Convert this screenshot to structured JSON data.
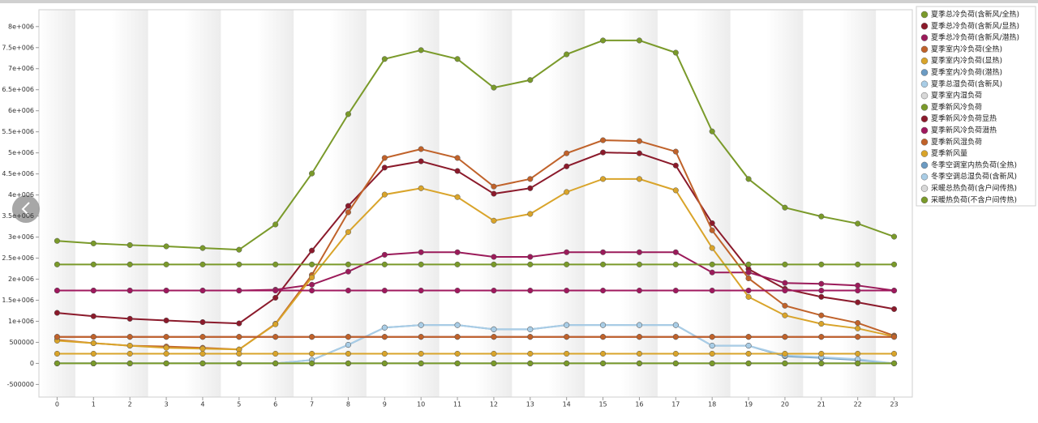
{
  "chart_data": {
    "type": "line",
    "x": [
      0,
      1,
      2,
      3,
      4,
      5,
      6,
      7,
      8,
      9,
      10,
      11,
      12,
      13,
      14,
      15,
      16,
      17,
      18,
      19,
      20,
      21,
      22,
      23
    ],
    "xlim": [
      -0.5,
      23.5
    ],
    "xticks": [
      0,
      1,
      2,
      3,
      4,
      5,
      6,
      7,
      8,
      9,
      10,
      11,
      12,
      13,
      14,
      15,
      16,
      17,
      18,
      19,
      20,
      21,
      22,
      23
    ],
    "ylim": [
      -800000,
      8400000
    ],
    "yticks": [
      -500000,
      0,
      500000,
      {
        "value": 1000000,
        "label": "1e+006"
      },
      {
        "value": 1500000,
        "label": "1.5e+006"
      },
      {
        "value": 2000000,
        "label": "2e+006"
      },
      {
        "value": 2500000,
        "label": "2.5e+006"
      },
      {
        "value": 3000000,
        "label": "3e+006"
      },
      {
        "value": 3500000,
        "label": "3.5e+006"
      },
      {
        "value": 4000000,
        "label": "4e+006"
      },
      {
        "value": 4500000,
        "label": "4.5e+006"
      },
      {
        "value": 5000000,
        "label": "5e+006"
      },
      {
        "value": 5500000,
        "label": "5.5e+006"
      },
      {
        "value": 6000000,
        "label": "6e+006"
      },
      {
        "value": 6500000,
        "label": "6.5e+006"
      },
      {
        "value": 7000000,
        "label": "7e+006"
      },
      {
        "value": 7500000,
        "label": "7.5e+006"
      },
      {
        "value": 8000000,
        "label": "8e+006"
      }
    ],
    "legend": "right",
    "series": [
      {
        "name": "夏季总冷负荷(含新风/全热)",
        "color": "#7a9a2a",
        "values": [
          2910000,
          2850000,
          2810000,
          2780000,
          2740000,
          2700000,
          3300000,
          4510000,
          5920000,
          7230000,
          7440000,
          7230000,
          6550000,
          6730000,
          7340000,
          7670000,
          7670000,
          7380000,
          5510000,
          4380000,
          3700000,
          3490000,
          3320000,
          3010000
        ]
      },
      {
        "name": "夏季总冷负荷(含新风/显热)",
        "color": "#8b1a2b",
        "values": [
          1200000,
          1120000,
          1060000,
          1020000,
          980000,
          950000,
          1560000,
          2680000,
          3740000,
          4650000,
          4800000,
          4570000,
          4030000,
          4160000,
          4680000,
          5010000,
          4990000,
          4700000,
          3330000,
          2240000,
          1770000,
          1580000,
          1450000,
          1290000
        ]
      },
      {
        "name": "夏季总冷负荷(含新风/潜热)",
        "color": "#9b1b5a",
        "values": [
          1730000,
          1730000,
          1730000,
          1730000,
          1730000,
          1730000,
          1750000,
          1870000,
          2180000,
          2580000,
          2640000,
          2640000,
          2530000,
          2530000,
          2640000,
          2640000,
          2640000,
          2640000,
          2160000,
          2160000,
          1910000,
          1890000,
          1850000,
          1730000
        ]
      },
      {
        "name": "夏季室内冷负荷(全热)",
        "color": "#c0622a",
        "values": [
          560000,
          480000,
          420000,
          400000,
          370000,
          330000,
          940000,
          2100000,
          3590000,
          4880000,
          5090000,
          4880000,
          4200000,
          4380000,
          4990000,
          5300000,
          5280000,
          5030000,
          3160000,
          2020000,
          1370000,
          1140000,
          960000,
          660000
        ]
      },
      {
        "name": "夏季室内冷负荷(显热)",
        "color": "#d9a42a",
        "values": [
          540000,
          480000,
          420000,
          370000,
          350000,
          330000,
          930000,
          2040000,
          3120000,
          4010000,
          4160000,
          3950000,
          3390000,
          3550000,
          4070000,
          4380000,
          4380000,
          4110000,
          2740000,
          1580000,
          1140000,
          940000,
          830000,
          640000
        ]
      },
      {
        "name": "夏季室内冷负荷(潜热)",
        "color": "#6b9bc3",
        "values": [
          0,
          0,
          0,
          0,
          0,
          0,
          0,
          80000,
          440000,
          850000,
          910000,
          910000,
          810000,
          810000,
          910000,
          910000,
          910000,
          910000,
          420000,
          420000,
          170000,
          130000,
          80000,
          0
        ]
      },
      {
        "name": "夏季总湿负荷(含新风)",
        "color": "#a9cde6",
        "values": [
          0,
          0,
          0,
          0,
          0,
          0,
          0,
          80000,
          440000,
          850000,
          910000,
          910000,
          810000,
          810000,
          910000,
          910000,
          910000,
          910000,
          420000,
          420000,
          190000,
          150000,
          100000,
          0
        ]
      },
      {
        "name": "夏季室内湿负荷",
        "color": "#d8d8d8",
        "values": [
          0,
          0,
          0,
          0,
          0,
          0,
          0,
          0,
          0,
          0,
          0,
          0,
          0,
          0,
          0,
          0,
          0,
          0,
          0,
          0,
          0,
          0,
          0,
          0
        ]
      },
      {
        "name": "夏季新风冷负荷",
        "color": "#7a9a2a",
        "values": [
          2350000,
          2350000,
          2350000,
          2350000,
          2350000,
          2350000,
          2350000,
          2350000,
          2350000,
          2350000,
          2350000,
          2350000,
          2350000,
          2350000,
          2350000,
          2350000,
          2350000,
          2350000,
          2350000,
          2350000,
          2350000,
          2350000,
          2350000,
          2350000
        ]
      },
      {
        "name": "夏季新风冷负荷显热",
        "color": "#8b1a2b",
        "values": [
          630000,
          630000,
          630000,
          630000,
          630000,
          630000,
          630000,
          630000,
          630000,
          630000,
          630000,
          630000,
          630000,
          630000,
          630000,
          630000,
          630000,
          630000,
          630000,
          630000,
          630000,
          630000,
          630000,
          630000
        ]
      },
      {
        "name": "夏季新风冷负荷潜热",
        "color": "#a0185e",
        "values": [
          1730000,
          1730000,
          1730000,
          1730000,
          1730000,
          1730000,
          1730000,
          1730000,
          1730000,
          1730000,
          1730000,
          1730000,
          1730000,
          1730000,
          1730000,
          1730000,
          1730000,
          1730000,
          1730000,
          1730000,
          1730000,
          1730000,
          1730000,
          1730000
        ]
      },
      {
        "name": "夏季新风湿负荷",
        "color": "#c0622a",
        "values": [
          630000,
          630000,
          630000,
          630000,
          630000,
          630000,
          630000,
          630000,
          630000,
          630000,
          630000,
          630000,
          630000,
          630000,
          630000,
          630000,
          630000,
          630000,
          630000,
          630000,
          630000,
          630000,
          630000,
          630000
        ]
      },
      {
        "name": "夏季新风量",
        "color": "#d9a42a",
        "values": [
          230000,
          230000,
          230000,
          230000,
          230000,
          230000,
          230000,
          230000,
          230000,
          230000,
          230000,
          230000,
          230000,
          230000,
          230000,
          230000,
          230000,
          230000,
          230000,
          230000,
          230000,
          230000,
          230000,
          230000
        ]
      },
      {
        "name": "冬季空调室内热负荷(全热)",
        "color": "#6b9bc3",
        "values": [
          0,
          0,
          0,
          0,
          0,
          0,
          0,
          0,
          0,
          0,
          0,
          0,
          0,
          0,
          0,
          0,
          0,
          0,
          0,
          0,
          0,
          0,
          0,
          0
        ]
      },
      {
        "name": "冬季空调总湿负荷(含新风)",
        "color": "#a9cde6",
        "values": [
          0,
          0,
          0,
          0,
          0,
          0,
          0,
          0,
          0,
          0,
          0,
          0,
          0,
          0,
          0,
          0,
          0,
          0,
          0,
          0,
          0,
          0,
          0,
          0
        ]
      },
      {
        "name": "采暖总热负荷(含户间传热)",
        "color": "#d8d8d8",
        "values": [
          0,
          0,
          0,
          0,
          0,
          0,
          0,
          0,
          0,
          0,
          0,
          0,
          0,
          0,
          0,
          0,
          0,
          0,
          0,
          0,
          0,
          0,
          0,
          0
        ]
      },
      {
        "name": "采暖热负荷(不含户间传热)",
        "color": "#7a9a2a",
        "values": [
          0,
          0,
          0,
          0,
          0,
          0,
          0,
          0,
          0,
          0,
          0,
          0,
          0,
          0,
          0,
          0,
          0,
          0,
          0,
          0,
          0,
          0,
          0,
          0
        ]
      }
    ]
  }
}
